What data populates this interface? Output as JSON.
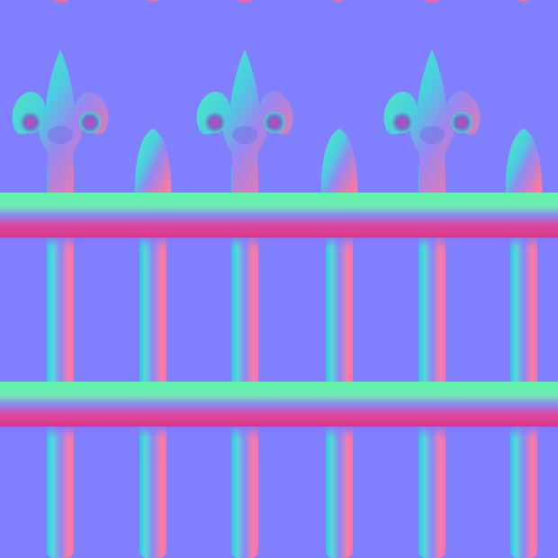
{
  "image": {
    "subject": "wrought-iron-fence-normal-map",
    "colors": {
      "flat_surface": "#8080ff",
      "lit_top_edge": "#5ef5a6",
      "lit_left_edge": "#2fc9e4",
      "shadow_right_edge": "#f27aa8",
      "shadow_bottom_edge": "#e8338c",
      "body_face": "#8c88f4"
    },
    "elements": {
      "fleur_de_lis_finials": 3,
      "small_spear_finials": 3,
      "horizontal_rails": 2,
      "vertical_pickets": 6
    }
  }
}
